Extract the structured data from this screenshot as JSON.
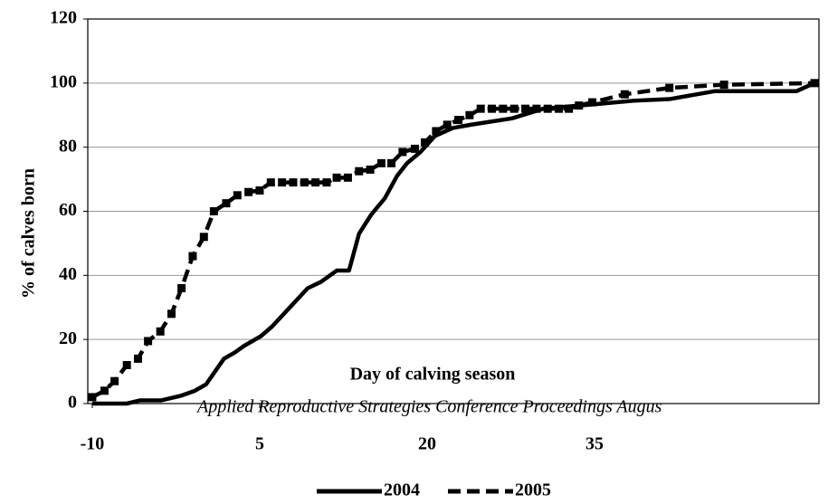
{
  "chart_data": {
    "type": "line",
    "y_label": "% of calves born",
    "annotations": [
      "Day of calving season",
      "Applied Reproductive Strategies Conference Proceedings  Augus"
    ],
    "xlim": [
      -10.4,
      55.1
    ],
    "xticks": [
      -10,
      5,
      20,
      35
    ],
    "ylim": [
      0,
      120
    ],
    "yticks": [
      0,
      20,
      40,
      60,
      80,
      100,
      120
    ],
    "grid": true,
    "legend": "bottom",
    "series": [
      {
        "name": "2004",
        "color": "#000000",
        "dash": false,
        "marker": "none",
        "x": [
          -10,
          -6.9,
          -5.7,
          -3.8,
          -2,
          -0.8,
          0.2,
          1,
          1.8,
          2.8,
          3.6,
          5.1,
          6.1,
          7.3,
          8.5,
          9.3,
          10.5,
          11.9,
          13,
          13.9,
          15,
          16.2,
          17.3,
          18.2,
          19.4,
          20.7,
          22.3,
          23.9,
          27.6,
          30.4,
          35.3,
          38.5,
          41.7,
          45.8,
          53.1,
          54.7
        ],
        "values": [
          0,
          0,
          1,
          1,
          2.5,
          4,
          6,
          10,
          14,
          16,
          18,
          21,
          24,
          28.5,
          33,
          36,
          38,
          41.5,
          41.5,
          53,
          59,
          64,
          71,
          75,
          78.5,
          83.5,
          86,
          87,
          89,
          92,
          93.5,
          94.5,
          95,
          97.5,
          97.5,
          100
        ]
      },
      {
        "name": "2005",
        "color": "#000000",
        "dash": true,
        "marker": "square",
        "x": [
          -10,
          -8.9,
          -8,
          -6.9,
          -5.9,
          -5,
          -3.9,
          -2.9,
          -2,
          -1,
          0,
          0.9,
          2,
          3,
          4,
          5,
          6,
          7,
          8,
          9,
          10,
          11,
          11.9,
          12.9,
          13.9,
          14.9,
          15.9,
          16.8,
          17.8,
          18.9,
          19.8,
          20.8,
          21.8,
          22.8,
          23.8,
          24.8,
          25.8,
          26.8,
          27.8,
          28.8,
          29.8,
          30.8,
          31.8,
          32.7,
          33.6,
          34.8,
          37.7,
          41.7,
          46.6,
          54.7
        ],
        "values": [
          2,
          4,
          7,
          12,
          14,
          19.5,
          22.5,
          28,
          36,
          46,
          52,
          60,
          62.5,
          65,
          66,
          66.5,
          69,
          69,
          69,
          69,
          69,
          69,
          70.5,
          70.5,
          72.5,
          73,
          75,
          75,
          78.5,
          79.5,
          81.5,
          85,
          87,
          88.5,
          90,
          92,
          92,
          92,
          92,
          92,
          92,
          92,
          92,
          92,
          93,
          94,
          96.5,
          98.5,
          99.5,
          100
        ]
      }
    ]
  }
}
